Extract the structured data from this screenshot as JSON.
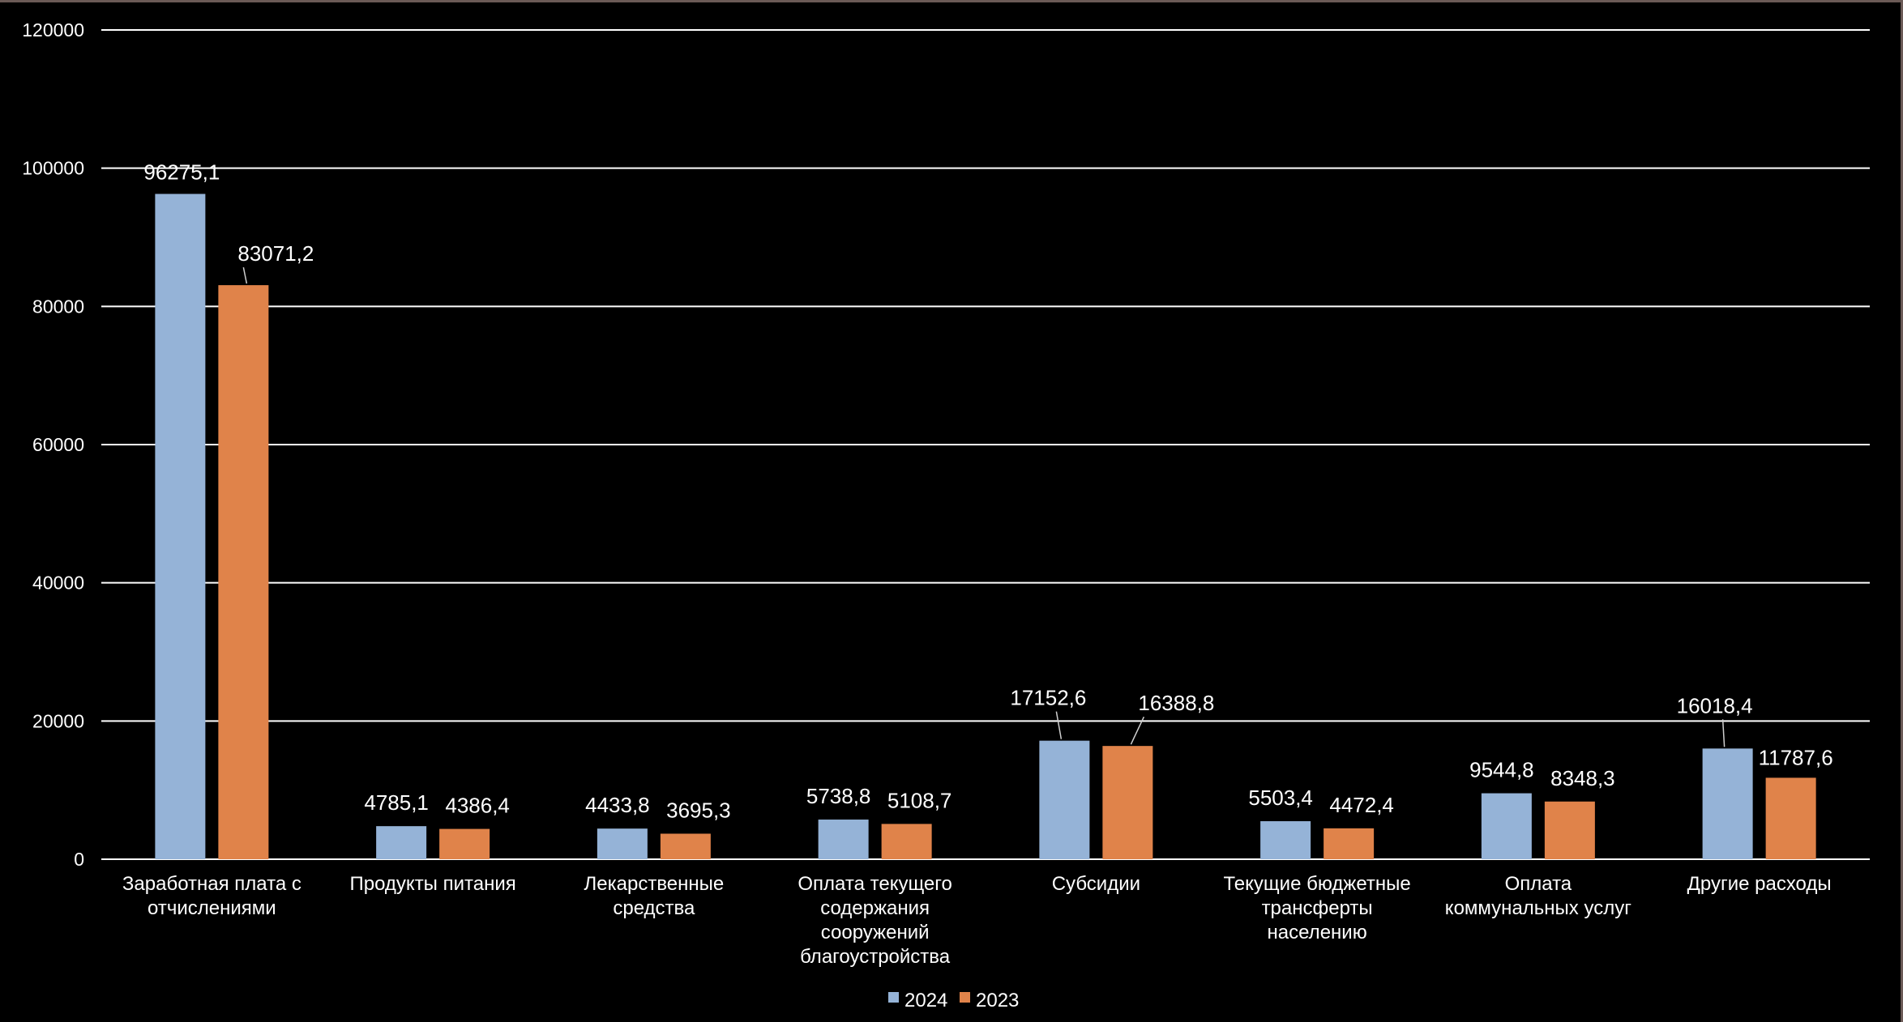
{
  "chart_data": {
    "type": "bar",
    "title": "",
    "xlabel": "",
    "ylabel": "",
    "ylim": [
      0,
      120000
    ],
    "yticks": [
      "0",
      "20000",
      "40000",
      "60000",
      "80000",
      "100000",
      "120000"
    ],
    "grid": true,
    "legend_position": "bottom",
    "categories": [
      [
        "Заработная плата с",
        "отчислениями"
      ],
      [
        "Продукты питания"
      ],
      [
        "Лекарственные",
        "средства"
      ],
      [
        "Оплата текущего",
        "содержания",
        "сооружений",
        "благоустройства"
      ],
      [
        "Субсидии"
      ],
      [
        "Текущие бюджетные",
        "трансферты",
        "населению"
      ],
      [
        "Оплата",
        "коммунальных услуг"
      ],
      [
        "Другие расходы"
      ]
    ],
    "series": [
      {
        "name": "2024",
        "color": "#95b3d7",
        "values": [
          96275.1,
          4785.1,
          4433.8,
          5738.8,
          17152.6,
          5503.4,
          9544.8,
          16018.4
        ],
        "labels": [
          "96275,1",
          "4785,1",
          "4433,8",
          "5738,8",
          "17152,6",
          "5503,4",
          "9544,8",
          "16018,4"
        ]
      },
      {
        "name": "2023",
        "color": "#e0834a",
        "values": [
          83071.2,
          4386.4,
          3695.3,
          5108.7,
          16388.8,
          4472.4,
          8348.3,
          11787.6
        ],
        "labels": [
          "83071,2",
          "4386,4",
          "3695,3",
          "5108,7",
          "16388,8",
          "4472,4",
          "8348,3",
          "11787,6"
        ]
      }
    ]
  },
  "colors": {
    "background": "#000000",
    "grid": "#ffffff",
    "text": "#ffffff",
    "frame": "#6b5a56"
  }
}
